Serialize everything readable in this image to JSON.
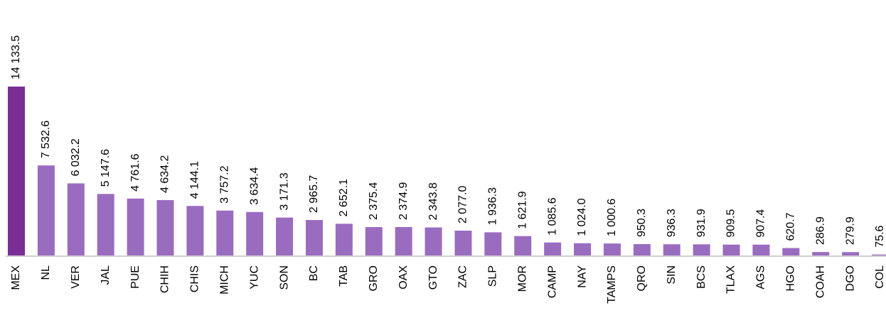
{
  "chart_data": {
    "type": "bar",
    "categories": [
      "MEX",
      "NL",
      "VER",
      "JAL",
      "PUE",
      "CHIH",
      "CHIS",
      "MICH",
      "YUC",
      "SON",
      "BC",
      "TAB",
      "GRO",
      "OAX",
      "GTO",
      "ZAC",
      "SLP",
      "MOR",
      "CAMP",
      "NAY",
      "TAMPS",
      "QRO",
      "SIN",
      "BCS",
      "TLAX",
      "AGS",
      "HGO",
      "COAH",
      "DGO",
      "COL"
    ],
    "values": [
      14133.5,
      7532.6,
      6032.2,
      5147.6,
      4761.6,
      4634.2,
      4144.1,
      3757.2,
      3634.4,
      3171.3,
      2965.7,
      2652.1,
      2375.4,
      2374.9,
      2343.8,
      2077.0,
      1936.3,
      1621.9,
      1085.6,
      1024.0,
      1000.6,
      950.3,
      936.3,
      931.9,
      909.5,
      907.4,
      620.7,
      286.9,
      279.9,
      75.6
    ],
    "value_labels": [
      "14 133.5",
      "7 532.6",
      "6 032.2",
      "5 147.6",
      "4 761.6",
      "4 634.2",
      "4 144.1",
      "3 757.2",
      "3 634.4",
      "3 171.3",
      "2 965.7",
      "2 652.1",
      "2 375.4",
      "2 374.9",
      "2 343.8",
      "2 077.0",
      "1 936.3",
      "1 621.9",
      "1 085.6",
      "1 024.0",
      "1 000.6",
      "950.3",
      "936.3",
      "931.9",
      "909.5",
      "907.4",
      "620.7",
      "286.9",
      "279.9",
      "75.6"
    ],
    "colors": [
      "#7b2d96",
      "#9a6cc0",
      "#9a6cc0",
      "#9a6cc0",
      "#9a6cc0",
      "#9a6cc0",
      "#9a6cc0",
      "#9a6cc0",
      "#9a6cc0",
      "#9a6cc0",
      "#9a6cc0",
      "#9a6cc0",
      "#9a6cc0",
      "#9a6cc0",
      "#9a6cc0",
      "#9a6cc0",
      "#9a6cc0",
      "#9a6cc0",
      "#9a6cc0",
      "#9a6cc0",
      "#9a6cc0",
      "#9a6cc0",
      "#9a6cc0",
      "#9a6cc0",
      "#9a6cc0",
      "#9a6cc0",
      "#9a6cc0",
      "#9a6cc0",
      "#9a6cc0",
      "#9a6cc0"
    ]
  }
}
